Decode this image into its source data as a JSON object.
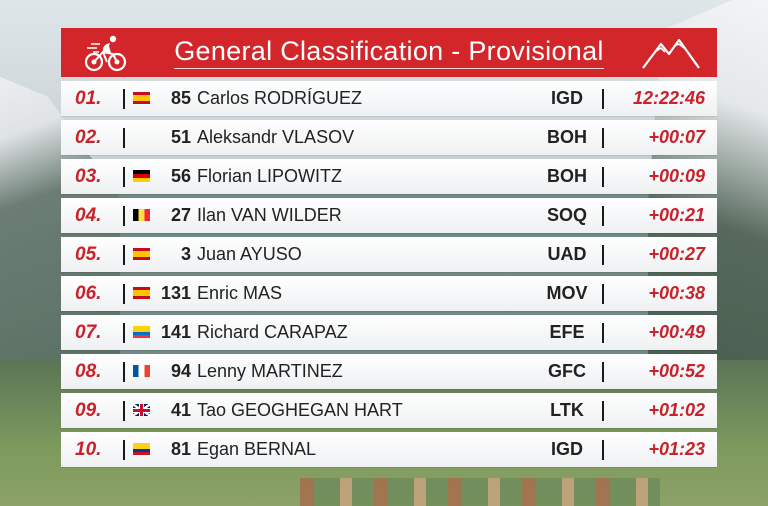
{
  "header": {
    "title": "General Classification - Provisional",
    "bike_icon": "cyclist-icon",
    "mountain_icon": "mountain-peaks-icon",
    "accent_color": "#d2262b"
  },
  "standings": [
    {
      "position": "01.",
      "flag": "es",
      "number": "85",
      "name": "Carlos RODRÍGUEZ",
      "team": "IGD",
      "time": "12:22:46"
    },
    {
      "position": "02.",
      "flag": "none",
      "number": "51",
      "name": "Aleksandr VLASOV",
      "team": "BOH",
      "time": "+00:07"
    },
    {
      "position": "03.",
      "flag": "de",
      "number": "56",
      "name": "Florian LIPOWITZ",
      "team": "BOH",
      "time": "+00:09"
    },
    {
      "position": "04.",
      "flag": "be",
      "number": "27",
      "name": "Ilan VAN WILDER",
      "team": "SOQ",
      "time": "+00:21"
    },
    {
      "position": "05.",
      "flag": "es",
      "number": "3",
      "name": "Juan AYUSO",
      "team": "UAD",
      "time": "+00:27"
    },
    {
      "position": "06.",
      "flag": "es",
      "number": "131",
      "name": "Enric MAS",
      "team": "MOV",
      "time": "+00:38"
    },
    {
      "position": "07.",
      "flag": "ec",
      "number": "141",
      "name": "Richard CARAPAZ",
      "team": "EFE",
      "time": "+00:49"
    },
    {
      "position": "08.",
      "flag": "fr",
      "number": "94",
      "name": "Lenny MARTINEZ",
      "team": "GFC",
      "time": "+00:52"
    },
    {
      "position": "09.",
      "flag": "gb",
      "number": "41",
      "name": "Tao GEOGHEGAN HART",
      "team": "LTK",
      "time": "+01:02"
    },
    {
      "position": "10.",
      "flag": "co",
      "number": "81",
      "name": "Egan BERNAL",
      "team": "IGD",
      "time": "+01:23"
    }
  ]
}
